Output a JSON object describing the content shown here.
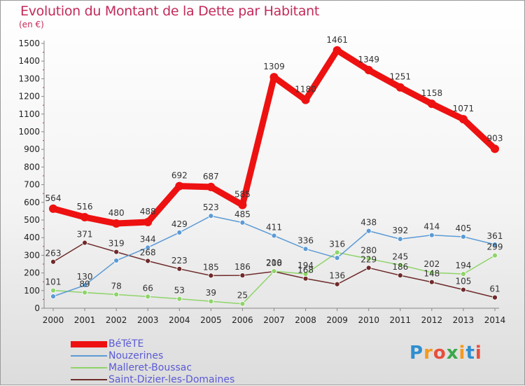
{
  "title": "Evolution du Montant de la Dette par Habitant",
  "unit": "(en €)",
  "logo": {
    "text": "Proxiti",
    "colors": [
      "#2e8ecf",
      "#f39a1e",
      "#e84e3c",
      "#3aa84a",
      "#f39a1e",
      "#2e8ecf",
      "#e84e3c"
    ]
  },
  "chart_data": {
    "type": "line",
    "x": [
      "2000",
      "2001",
      "2002",
      "2003",
      "2004",
      "2005",
      "2006",
      "2007",
      "2008",
      "2009",
      "2010",
      "2011",
      "2012",
      "2013",
      "2014"
    ],
    "ylim": [
      0,
      1500
    ],
    "yticks": [
      0,
      100,
      200,
      300,
      400,
      500,
      600,
      700,
      800,
      900,
      1000,
      1100,
      1200,
      1300,
      1400,
      1500
    ],
    "grid": false,
    "legend_position": "bottom-left",
    "series": [
      {
        "name": "BéTéTE",
        "color": "#ee1111",
        "width": 9,
        "marker": 6,
        "values": [
          564,
          516,
          480,
          488,
          692,
          687,
          585,
          1309,
          1180,
          1461,
          1349,
          1251,
          1158,
          1071,
          903
        ]
      },
      {
        "name": "Nouzerines",
        "color": "#5b9bd5",
        "width": 1.5,
        "marker": 3.5,
        "values": [
          67,
          130,
          270,
          344,
          429,
          523,
          485,
          411,
          336,
          285,
          438,
          392,
          414,
          405,
          361
        ]
      },
      {
        "name": "Malleret-Boussac",
        "color": "#8fd46a",
        "width": 1.5,
        "marker": 3.5,
        "values": [
          101,
          89,
          78,
          66,
          53,
          39,
          25,
          210,
          194,
          316,
          280,
          245,
          202,
          194,
          299
        ]
      },
      {
        "name": "Saint-Dizier-les-Domaines",
        "color": "#6e2a2a",
        "width": 1.5,
        "marker": 3.5,
        "values": [
          263,
          371,
          319,
          268,
          223,
          185,
          186,
          208,
          168,
          136,
          229,
          186,
          148,
          105,
          61
        ]
      }
    ],
    "labels": [
      {
        "series": 0,
        "values": [
          "564",
          "516",
          "480",
          "488",
          "692",
          "687",
          "585",
          "1309",
          "1180",
          "1461",
          "1349",
          "1251",
          "1158",
          "1071",
          "903"
        ]
      },
      {
        "series": 1,
        "values": [
          "",
          "130",
          "",
          "344",
          "429",
          "523",
          "485",
          "411",
          "336",
          "",
          "438",
          "392",
          "414",
          "405",
          "361"
        ]
      },
      {
        "series": 2,
        "values": [
          "101",
          "89",
          "78",
          "66",
          "53",
          "39",
          "25",
          "210",
          "194",
          "316",
          "280",
          "245",
          "202",
          "194",
          "299"
        ]
      },
      {
        "series": 3,
        "values": [
          "263",
          "371",
          "319",
          "268",
          "223",
          "185",
          "186",
          "208",
          "168",
          "136",
          "229",
          "186",
          "148",
          "105",
          "61"
        ]
      }
    ]
  }
}
